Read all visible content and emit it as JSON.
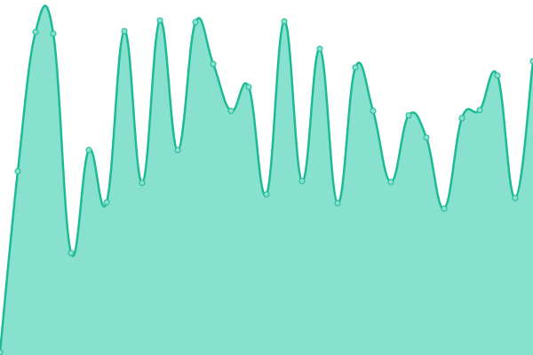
{
  "chart_data": {
    "type": "area",
    "x": [
      0,
      1,
      2,
      3,
      4,
      5,
      6,
      7,
      8,
      9,
      10,
      11,
      12,
      13,
      14,
      15,
      16,
      17,
      18,
      19,
      20,
      21,
      22,
      23,
      24,
      25,
      26,
      27,
      28,
      29,
      30
    ],
    "series": [
      {
        "color": "#1dbb95",
        "fill": "#88e0cf",
        "values": [
          3,
          207,
          364,
          362,
          115,
          231,
          172,
          365,
          194,
          377,
          231,
          375,
          328,
          275,
          302,
          181,
          376,
          196,
          345,
          171,
          324,
          275,
          195,
          270,
          245,
          165,
          267,
          276,
          315,
          177,
          331
        ]
      }
    ],
    "xlim": [
      0,
      30
    ],
    "ylim": [
      0,
      400
    ]
  }
}
